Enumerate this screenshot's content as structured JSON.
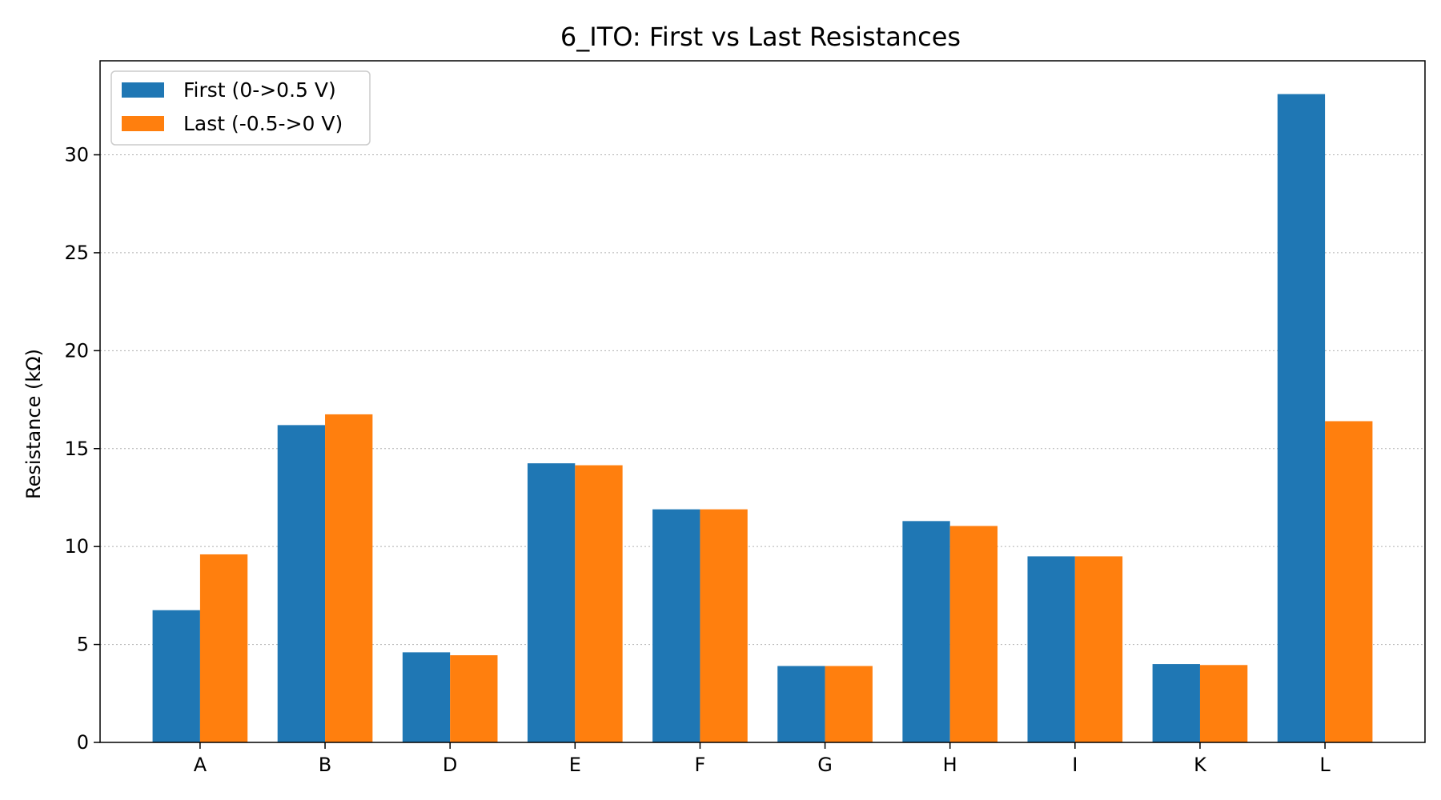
{
  "chart_data": {
    "type": "bar",
    "title": "6_ITO: First vs Last Resistances",
    "xlabel": "",
    "ylabel": "Resistance (kΩ)",
    "categories": [
      "A",
      "B",
      "D",
      "E",
      "F",
      "G",
      "H",
      "I",
      "K",
      "L"
    ],
    "series": [
      {
        "name": "First (0->0.5 V)",
        "color": "#1f77b4",
        "values": [
          6.75,
          16.2,
          4.6,
          14.25,
          11.9,
          3.9,
          11.3,
          9.5,
          4.0,
          33.1
        ]
      },
      {
        "name": "Last (-0.5->0 V)",
        "color": "#ff7f0e",
        "values": [
          9.6,
          16.75,
          4.45,
          14.15,
          11.9,
          3.9,
          11.05,
          9.5,
          3.95,
          16.4
        ]
      }
    ],
    "ylim": [
      0,
      34.8
    ],
    "yticks": [
      0,
      5,
      10,
      15,
      20,
      25,
      30
    ],
    "grid": "y-dotted",
    "legend_position": "top-left"
  }
}
